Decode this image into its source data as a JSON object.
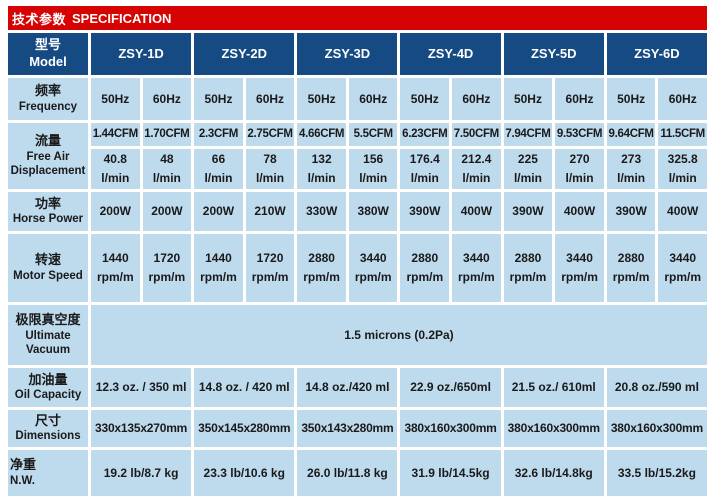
{
  "title": {
    "zh": "技术参数",
    "en": "SPECIFICATION"
  },
  "colors": {
    "title_bar_red": "#d50302",
    "header_navy": "#164a82",
    "cell_light_blue": "#bedaed",
    "text": "#1a1a1a",
    "grid_gap_white": "#ffffff"
  },
  "table": {
    "model_header": {
      "zh": "型号",
      "en": "Model"
    },
    "models": [
      "ZSY-1D",
      "ZSY-2D",
      "ZSY-3D",
      "ZSY-4D",
      "ZSY-5D",
      "ZSY-6D"
    ],
    "rows": {
      "frequency": {
        "zh": "频率",
        "en": "Frequency",
        "values": [
          "50Hz",
          "60Hz",
          "50Hz",
          "60Hz",
          "50Hz",
          "60Hz",
          "50Hz",
          "60Hz",
          "50Hz",
          "60Hz",
          "50Hz",
          "60Hz"
        ]
      },
      "flow": {
        "zh": "流量",
        "en": "Free Air Displacement",
        "cfm_values": [
          "1.44CFM",
          "1.70CFM",
          "2.3CFM",
          "2.75CFM",
          "4.66CFM",
          "5.5CFM",
          "6.23CFM",
          "7.50CFM",
          "7.94CFM",
          "9.53CFM",
          "9.64CFM",
          "11.5CFM"
        ],
        "lmin_values": [
          "40.8",
          "48",
          "66",
          "78",
          "132",
          "156",
          "176.4",
          "212.4",
          "225",
          "270",
          "273",
          "325.8"
        ],
        "lmin_unit": "l/min"
      },
      "horse_power": {
        "zh": "功率",
        "en": "Horse Power",
        "values": [
          "200W",
          "200W",
          "200W",
          "210W",
          "330W",
          "380W",
          "390W",
          "400W",
          "390W",
          "400W",
          "390W",
          "400W"
        ]
      },
      "motor_speed": {
        "zh": "转速",
        "en": "Motor Speed",
        "values": [
          "1440",
          "1720",
          "1440",
          "1720",
          "2880",
          "3440",
          "2880",
          "3440",
          "2880",
          "3440",
          "2880",
          "3440"
        ],
        "unit": "rpm/m"
      },
      "ultimate_vacuum": {
        "zh": "极限真空度",
        "en": "Ultimate Vacuum",
        "value": "1.5 microns (0.2Pa)"
      },
      "oil_capacity": {
        "zh": "加油量",
        "en": "Oil Capacity",
        "values": [
          "12.3 oz. / 350 ml",
          "14.8 oz. / 420 ml",
          "14.8 oz./420 ml",
          "22.9 oz./650ml",
          "21.5 oz./ 610ml",
          "20.8 oz./590 ml"
        ]
      },
      "dimensions": {
        "zh": "尺寸",
        "en": "Dimensions",
        "values": [
          "330x135x270mm",
          "350x145x280mm",
          "350x143x280mm",
          "380x160x300mm",
          "380x160x300mm",
          "380x160x300mm"
        ]
      },
      "net_weight": {
        "zh": "净重",
        "en": "N.W.",
        "values": [
          "19.2 lb/8.7 kg",
          "23.3 lb/10.6 kg",
          "26.0 lb/11.8 kg",
          "31.9 lb/14.5kg",
          "32.6 lb/14.8kg",
          "33.5 lb/15.2kg"
        ]
      }
    }
  }
}
